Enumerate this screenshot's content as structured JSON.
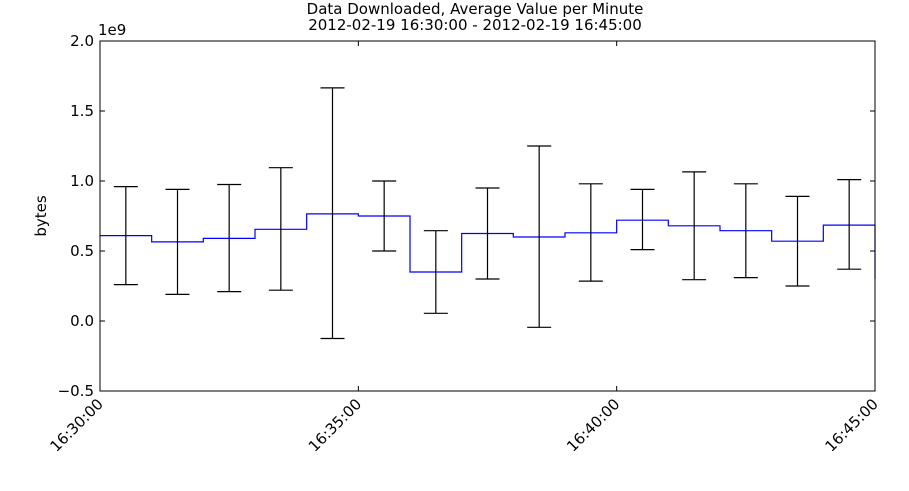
{
  "chart_data": {
    "type": "line",
    "title": "Data Downloaded, Average Value per Minute",
    "subtitle": "2012-02-19 16:30:00 - 2012-02-19 16:45:00",
    "xlabel": "",
    "ylabel": "bytes",
    "y_scale_offset": "1e9",
    "ylim": [
      -0.5,
      2.0
    ],
    "xlim": [
      "16:30:00",
      "16:45:00"
    ],
    "y_ticks": [
      "−0.5",
      "0.0",
      "0.5",
      "1.0",
      "1.5",
      "2.0"
    ],
    "x_ticks": [
      "16:30:00",
      "16:35:00",
      "16:40:00",
      "16:45:00"
    ],
    "grid": false,
    "line_color": "#0000ff",
    "errorbar_color": "#000000",
    "series": [
      {
        "style": "step",
        "x_minutes": [
          0,
          1,
          2,
          3,
          4,
          5,
          6,
          7,
          8,
          9,
          10,
          11,
          12,
          13,
          14
        ],
        "values": [
          0.61,
          0.565,
          0.59,
          0.655,
          0.765,
          0.75,
          0.35,
          0.625,
          0.6,
          0.63,
          0.72,
          0.68,
          0.645,
          0.57,
          0.685
        ],
        "err_low": [
          0.26,
          0.19,
          0.21,
          0.22,
          -0.125,
          0.5,
          0.055,
          0.3,
          -0.045,
          0.285,
          0.51,
          0.295,
          0.31,
          0.25,
          0.37
        ],
        "err_high": [
          0.96,
          0.94,
          0.975,
          1.095,
          1.665,
          1.0,
          0.645,
          0.95,
          1.25,
          0.98,
          0.94,
          1.065,
          0.98,
          0.89,
          1.01
        ]
      }
    ]
  }
}
